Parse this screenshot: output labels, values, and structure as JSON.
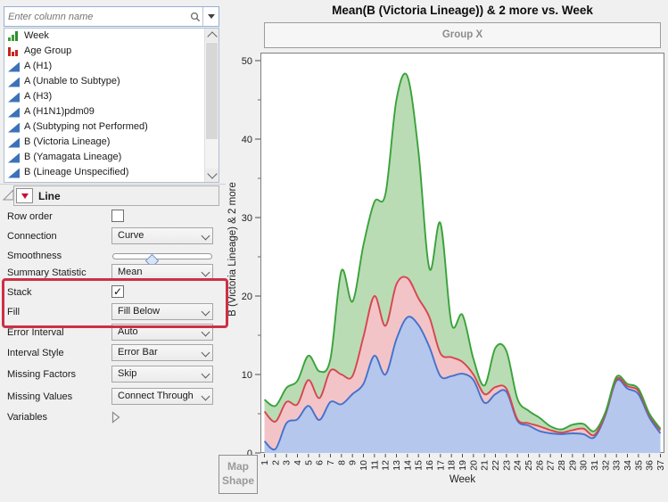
{
  "column_panel": {
    "search": {
      "placeholder": "Enter column name"
    },
    "columns": [
      {
        "label": "Week",
        "icon": "ordinal-bars-icon"
      },
      {
        "label": "Age Group",
        "icon": "nominal-bars-icon"
      },
      {
        "label": "A (H1)",
        "icon": "continuous-triangle-icon"
      },
      {
        "label": "A (Unable to Subtype)",
        "icon": "continuous-triangle-icon"
      },
      {
        "label": "A (H3)",
        "icon": "continuous-triangle-icon"
      },
      {
        "label": "A (H1N1)pdm09",
        "icon": "continuous-triangle-icon"
      },
      {
        "label": "A (Subtyping not Performed)",
        "icon": "continuous-triangle-icon"
      },
      {
        "label": "B (Victoria Lineage)",
        "icon": "continuous-triangle-icon"
      },
      {
        "label": "B (Yamagata Lineage)",
        "icon": "continuous-triangle-icon"
      },
      {
        "label": "B (Lineage Unspecified)",
        "icon": "continuous-triangle-icon"
      }
    ]
  },
  "line_panel": {
    "title": "Line",
    "highlight_color": "#cd3045",
    "rows": [
      {
        "label": "Row order",
        "control": "checkbox",
        "checked": false
      },
      {
        "label": "Connection",
        "control": "dropdown",
        "value": "Curve"
      },
      {
        "label": "Smoothness",
        "control": "slider",
        "value_pct": 37
      },
      {
        "label": "Summary Statistic",
        "control": "dropdown",
        "value": "Mean"
      },
      {
        "label": "Stack",
        "control": "checkbox",
        "checked": true,
        "highlighted": true
      },
      {
        "label": "Fill",
        "control": "dropdown",
        "value": "Fill Below",
        "highlighted": true
      },
      {
        "label": "Error Interval",
        "control": "dropdown",
        "value": "Auto"
      },
      {
        "label": "Interval Style",
        "control": "dropdown",
        "value": "Error Bar"
      },
      {
        "label": "Missing Factors",
        "control": "dropdown",
        "value": "Skip"
      },
      {
        "label": "Missing Values",
        "control": "dropdown",
        "value": "Connect Through"
      },
      {
        "label": "Variables",
        "control": "disclosure"
      }
    ]
  },
  "map_shape_button": {
    "line1": "Map",
    "line2": "Shape"
  },
  "chart": {
    "title": "Mean(B (Victoria Lineage)) & 2 more vs. Week",
    "group_header": "Group X",
    "xlabel": "Week",
    "ylabel": "B (Victoria Lineage) & 2 more"
  },
  "chart_data": {
    "type": "area",
    "stacked": true,
    "grid": false,
    "legend": "none",
    "title": "Mean(B (Victoria Lineage)) & 2 more vs. Week",
    "xlabel": "Week",
    "ylabel": "B (Victoria Lineage) & 2 more",
    "ylim": [
      0,
      50
    ],
    "yticks": [
      0,
      10,
      20,
      30,
      40,
      50
    ],
    "y_minor_step": 5,
    "x": [
      1,
      2,
      3,
      4,
      5,
      6,
      7,
      8,
      9,
      10,
      11,
      12,
      13,
      14,
      15,
      16,
      17,
      18,
      19,
      20,
      21,
      22,
      23,
      24,
      25,
      26,
      27,
      28,
      29,
      30,
      31,
      32,
      33,
      34,
      35,
      36,
      37
    ],
    "series": [
      {
        "name": "B (Victoria Lineage)",
        "line_color": "#4472cc",
        "fill_color": "#b5c7ec",
        "stack_top": [
          1.5,
          0.5,
          3.8,
          4.3,
          6.0,
          4.2,
          6.5,
          6.2,
          7.5,
          8.8,
          12.4,
          10.0,
          14.5,
          17.3,
          16.3,
          13.5,
          9.8,
          9.8,
          10.1,
          9.3,
          6.4,
          7.5,
          7.8,
          4.1,
          3.5,
          2.8,
          2.5,
          2.4,
          2.5,
          2.4,
          2.0,
          4.8,
          9.2,
          8.2,
          7.5,
          4.5,
          2.5
        ]
      },
      {
        "name": "(unlabeled series 2)",
        "line_color": "#d8454f",
        "fill_color": "#f2c4c8",
        "stack_top": [
          5.3,
          4.0,
          6.5,
          6.2,
          9.3,
          7.0,
          10.5,
          10.0,
          9.8,
          14.8,
          20.0,
          16.2,
          21.5,
          22.3,
          19.7,
          17.3,
          12.7,
          12.2,
          11.6,
          10.0,
          7.5,
          8.4,
          8.2,
          4.3,
          3.8,
          3.4,
          2.9,
          2.6,
          2.9,
          3.1,
          2.3,
          5.0,
          9.4,
          8.5,
          7.9,
          4.8,
          2.9
        ]
      },
      {
        "name": "(unlabeled series 3)",
        "line_color": "#3aa23a",
        "fill_color": "#b9dcb4",
        "stack_top": [
          6.8,
          6.0,
          8.3,
          9.2,
          12.4,
          10.4,
          12.0,
          23.2,
          19.3,
          26.5,
          32.0,
          33.0,
          45.0,
          48.0,
          38.4,
          23.5,
          29.3,
          16.5,
          17.6,
          12.0,
          8.6,
          13.4,
          13.0,
          6.9,
          5.4,
          4.5,
          3.4,
          3.0,
          3.6,
          3.7,
          2.8,
          5.2,
          9.7,
          8.8,
          8.2,
          5.0,
          3.1
        ]
      }
    ]
  }
}
